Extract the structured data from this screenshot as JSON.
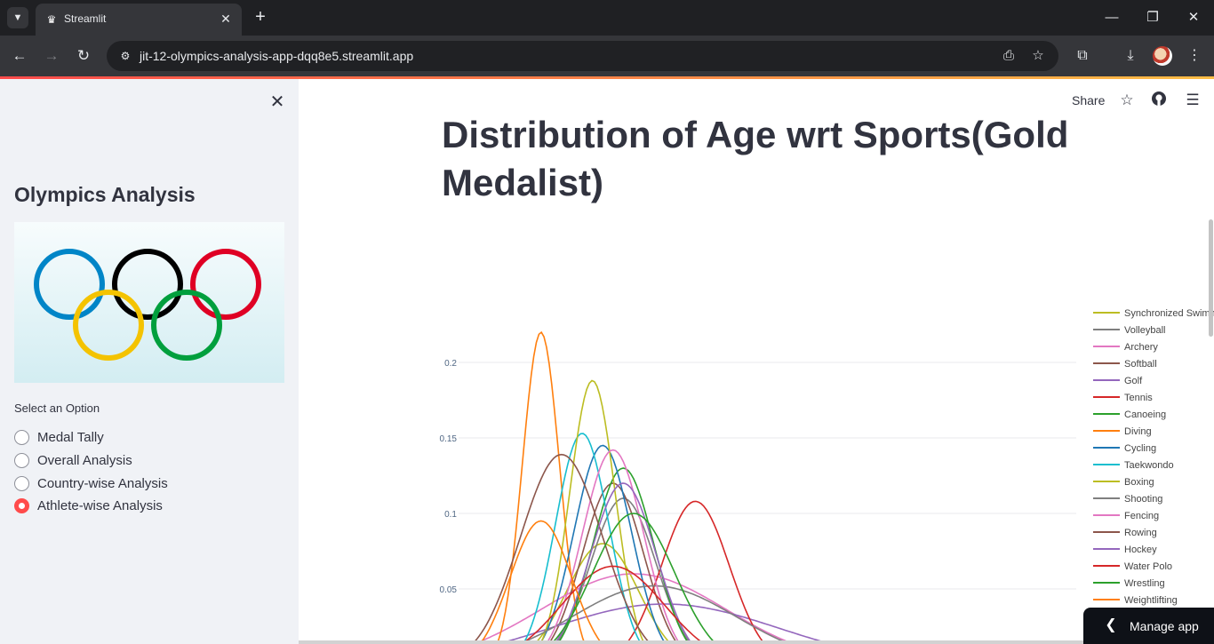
{
  "browser": {
    "tab_title": "Streamlit",
    "url": "jit-12-olympics-analysis-app-dqq8e5.streamlit.app"
  },
  "sidebar": {
    "title": "Olympics Analysis",
    "select_label": "Select an Option",
    "options": [
      "Medal Tally",
      "Overall Analysis",
      "Country-wise Analysis",
      "Athlete-wise Analysis"
    ],
    "selected_index": 3
  },
  "header": {
    "share_label": "Share"
  },
  "main": {
    "title": "Distribution of Age wrt Sports(Gold Medalist)",
    "manage_app_label": "Manage app"
  },
  "colors": {
    "accent": "#ff4b4b",
    "text": "#31333f",
    "sidebar_bg": "#f0f2f6"
  },
  "icons": [
    "close-icon",
    "star-icon",
    "github-icon",
    "hamburger-menu-icon",
    "chevron-left-icon"
  ],
  "chart_data": {
    "type": "line",
    "ylim": [
      0,
      0.25
    ],
    "yticks": [
      0.05,
      0.1,
      0.15,
      0.2
    ],
    "ytick_labels": [
      "0.05",
      "0.1",
      "0.15",
      "0.2"
    ],
    "xlim": [
      10,
      70
    ],
    "grid": true,
    "legend_placement": "right",
    "series": [
      {
        "name": "Synchronized Swimming",
        "color": "#bcbd22",
        "peak_x": 24,
        "peak_y": 0.08,
        "sigma": 3.5
      },
      {
        "name": "Volleyball",
        "color": "#7f7f7f",
        "peak_x": 26,
        "peak_y": 0.11,
        "sigma": 3.2
      },
      {
        "name": "Archery",
        "color": "#e377c2",
        "peak_x": 27,
        "peak_y": 0.06,
        "sigma": 9
      },
      {
        "name": "Softball",
        "color": "#8c564b",
        "peak_x": 25,
        "peak_y": 0.12,
        "sigma": 3
      },
      {
        "name": "Golf",
        "color": "#9467bd",
        "peak_x": 30,
        "peak_y": 0.04,
        "sigma": 11
      },
      {
        "name": "Tennis",
        "color": "#d62728",
        "peak_x": 33,
        "peak_y": 0.108,
        "sigma": 3.3
      },
      {
        "name": "Canoeing",
        "color": "#2ca02c",
        "peak_x": 26,
        "peak_y": 0.13,
        "sigma": 3
      },
      {
        "name": "Diving",
        "color": "#ff7f0e",
        "peak_x": 18,
        "peak_y": 0.22,
        "sigma": 1.8
      },
      {
        "name": "Cycling",
        "color": "#1f77b4",
        "peak_x": 24,
        "peak_y": 0.145,
        "sigma": 2.8
      },
      {
        "name": "Taekwondo",
        "color": "#17becf",
        "peak_x": 22,
        "peak_y": 0.153,
        "sigma": 2.6
      },
      {
        "name": "Boxing",
        "color": "#bcbd22",
        "peak_x": 23,
        "peak_y": 0.188,
        "sigma": 2.2
      },
      {
        "name": "Shooting",
        "color": "#7f7f7f",
        "peak_x": 29,
        "peak_y": 0.052,
        "sigma": 8
      },
      {
        "name": "Fencing",
        "color": "#e377c2",
        "peak_x": 25,
        "peak_y": 0.142,
        "sigma": 3
      },
      {
        "name": "Rowing",
        "color": "#8c564b",
        "peak_x": 20,
        "peak_y": 0.139,
        "sigma": 4
      },
      {
        "name": "Hockey",
        "color": "#9467bd",
        "peak_x": 26,
        "peak_y": 0.12,
        "sigma": 3.2
      },
      {
        "name": "Water Polo",
        "color": "#d62728",
        "peak_x": 25,
        "peak_y": 0.065,
        "sigma": 5
      },
      {
        "name": "Wrestling",
        "color": "#2ca02c",
        "peak_x": 27,
        "peak_y": 0.1,
        "sigma": 4
      },
      {
        "name": "Weightlifting",
        "color": "#ff7f0e",
        "peak_x": 18,
        "peak_y": 0.095,
        "sigma": 3
      }
    ]
  }
}
